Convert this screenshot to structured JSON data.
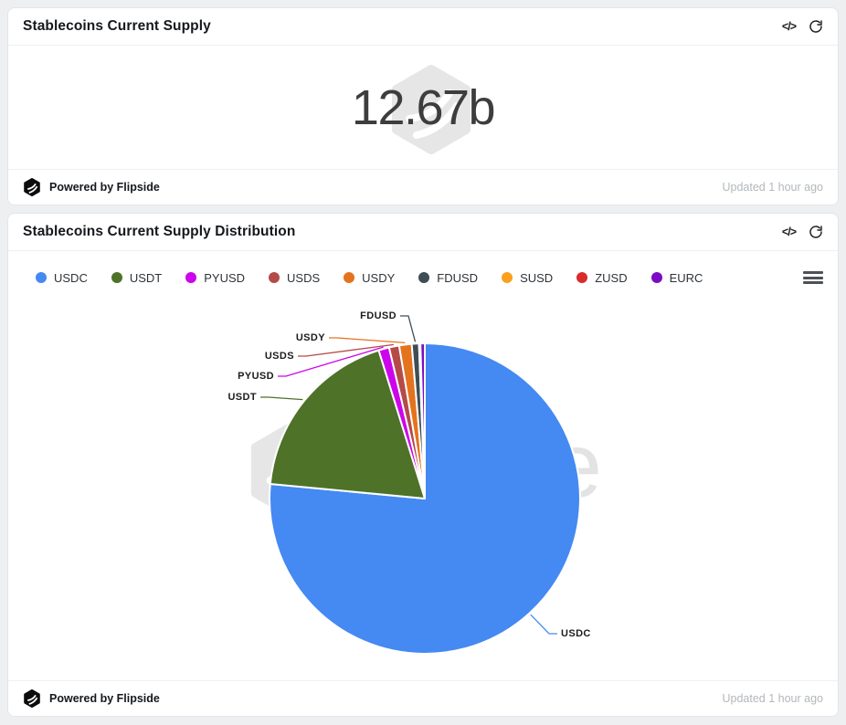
{
  "toolbar": {
    "code_label": "</>"
  },
  "footer": {
    "powered_by": "Powered by Flipside",
    "updated": "Updated 1 hour ago"
  },
  "card_supply": {
    "title": "Stablecoins Current Supply",
    "value": "12.67b"
  },
  "card_distribution": {
    "title": "Stablecoins Current Supply Distribution"
  },
  "chart_data": {
    "type": "pie",
    "title": "Stablecoins Current Supply Distribution",
    "total_supply_label": "12.67b",
    "unit": "percent (estimated from slice angles)",
    "legend_position": "top",
    "watermark": "Flipside",
    "series": [
      {
        "name": "USDC",
        "value": 76.5,
        "color": "#4589f2"
      },
      {
        "name": "USDT",
        "value": 18.7,
        "color": "#4e7228"
      },
      {
        "name": "PYUSD",
        "value": 1.1,
        "color": "#cc05eb"
      },
      {
        "name": "USDS",
        "value": 1.05,
        "color": "#b44b49"
      },
      {
        "name": "USDY",
        "value": 1.3,
        "color": "#e4731e"
      },
      {
        "name": "FDUSD",
        "value": 0.75,
        "color": "#3d4e55"
      },
      {
        "name": "SUSD",
        "value": 0.12,
        "color": "#f9a11f"
      },
      {
        "name": "ZUSD",
        "value": 0.03,
        "color": "#d92b2b"
      },
      {
        "name": "EURC",
        "value": 0.45,
        "color": "#7c0cc4"
      }
    ],
    "labeled_slices": [
      "USDC",
      "USDT",
      "PYUSD",
      "USDS",
      "USDY",
      "FDUSD"
    ]
  }
}
